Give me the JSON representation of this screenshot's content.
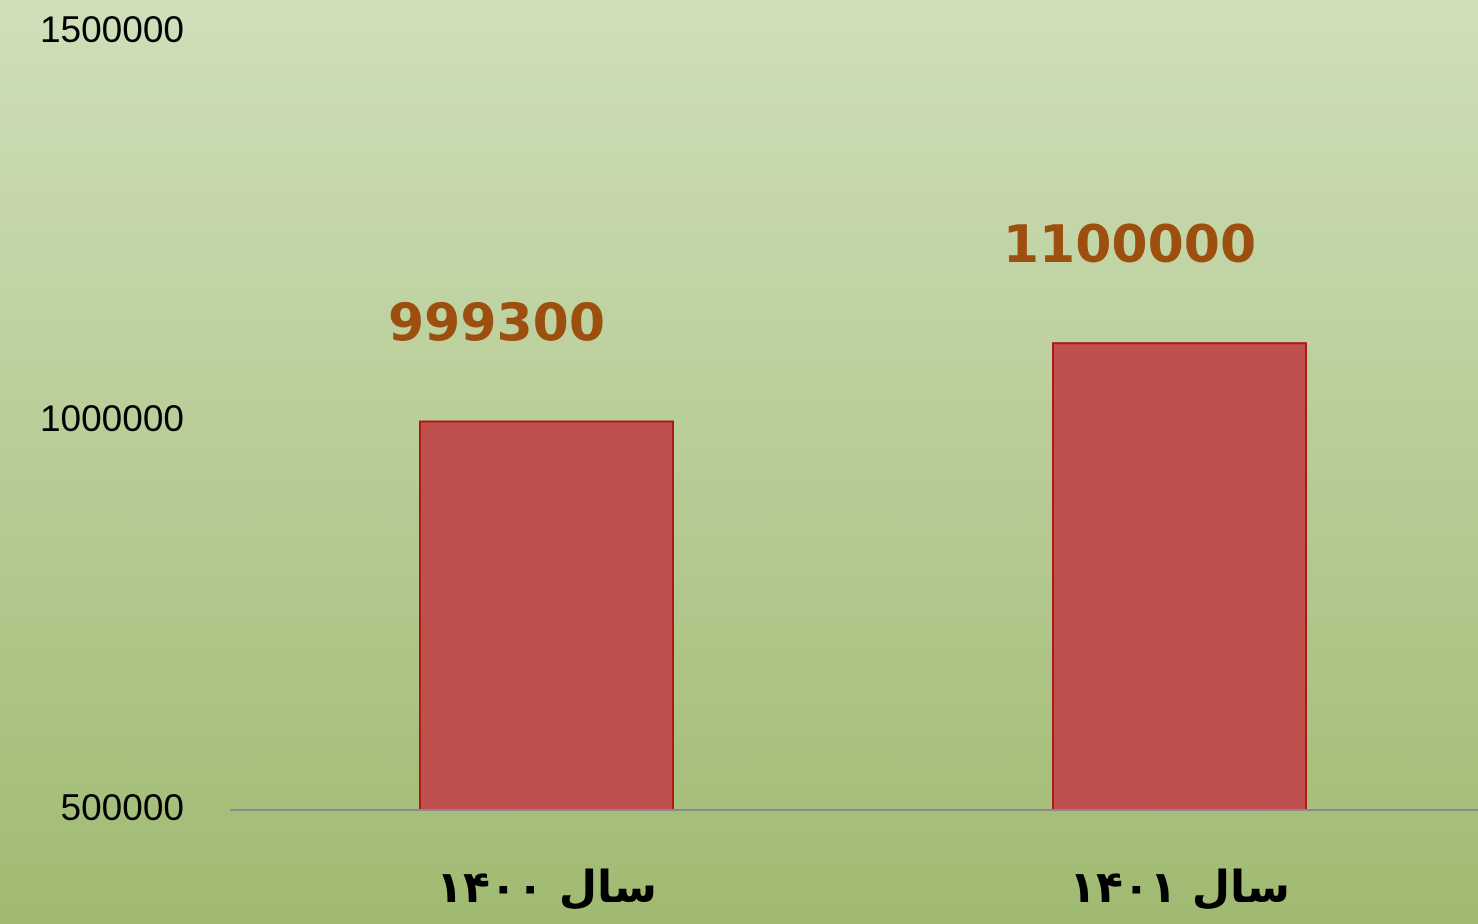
{
  "chart_data": {
    "type": "bar",
    "categories": [
      "سال ۱۴۰۰",
      "سال ۱۴۰۱"
    ],
    "values": [
      999300,
      1100000
    ],
    "color": "#c0504d",
    "ylim": [
      500000,
      1500000
    ],
    "yticks": [
      500000,
      1000000,
      1500000
    ],
    "grid": false
  }
}
